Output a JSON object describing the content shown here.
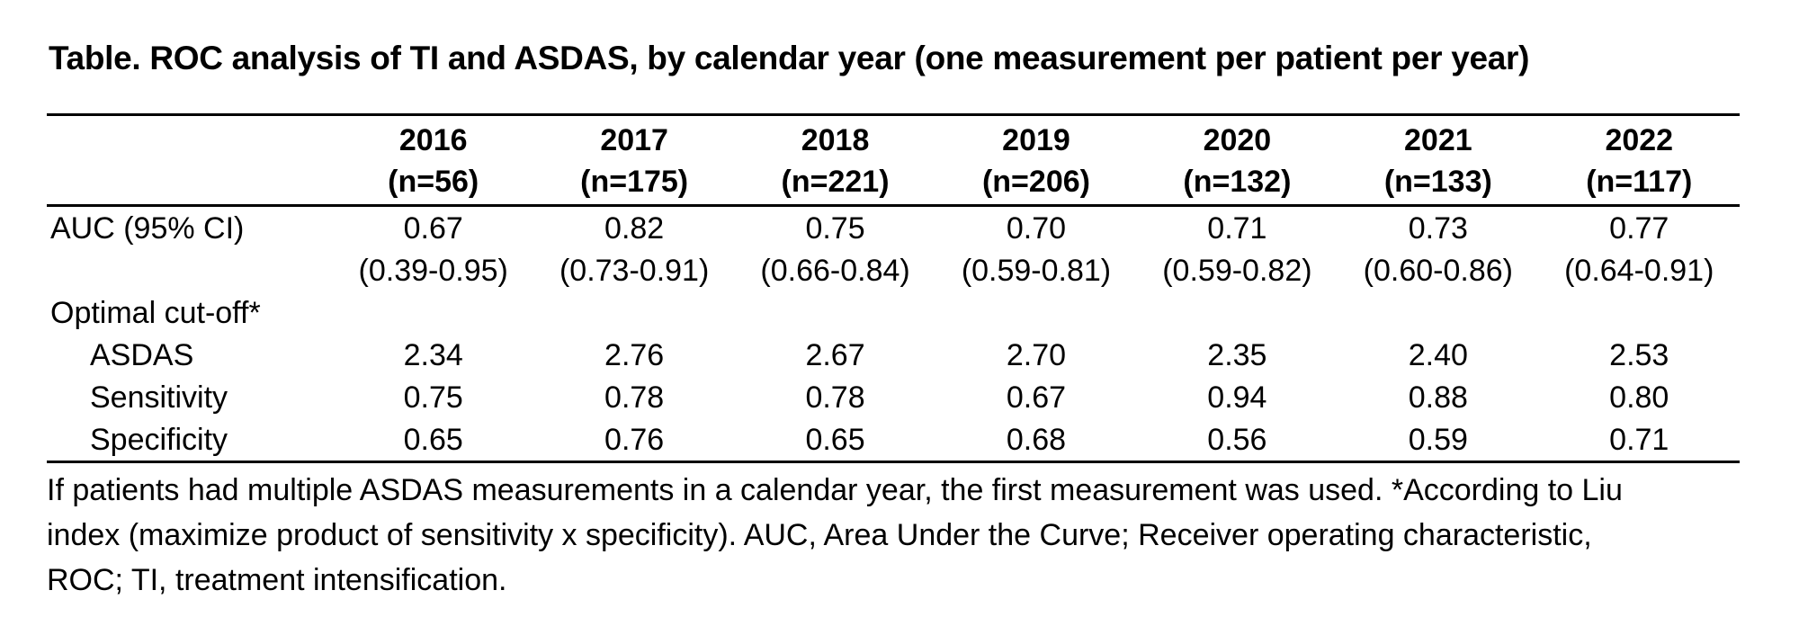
{
  "title": "Table. ROC analysis of TI and ASDAS, by calendar year (one measurement per patient per year)",
  "table": {
    "columns": [
      {
        "year": "2016",
        "n": "(n=56)"
      },
      {
        "year": "2017",
        "n": "(n=175)"
      },
      {
        "year": "2018",
        "n": "(n=221)"
      },
      {
        "year": "2019",
        "n": "(n=206)"
      },
      {
        "year": "2020",
        "n": "(n=132)"
      },
      {
        "year": "2021",
        "n": "(n=133)"
      },
      {
        "year": "2022",
        "n": "(n=117)"
      }
    ],
    "rows": [
      {
        "label": "AUC (95% CI)",
        "indent": false,
        "values": [
          "0.67",
          "0.82",
          "0.75",
          "0.70",
          "0.71",
          "0.73",
          "0.77"
        ]
      },
      {
        "label": "",
        "indent": false,
        "values": [
          "(0.39-0.95)",
          "(0.73-0.91)",
          "(0.66-0.84)",
          "(0.59-0.81)",
          "(0.59-0.82)",
          "(0.60-0.86)",
          "(0.64-0.91)"
        ]
      },
      {
        "label": "Optimal cut-off*",
        "indent": false,
        "values": [
          "",
          "",
          "",
          "",
          "",
          "",
          ""
        ]
      },
      {
        "label": "ASDAS",
        "indent": true,
        "values": [
          "2.34",
          "2.76",
          "2.67",
          "2.70",
          "2.35",
          "2.40",
          "2.53"
        ]
      },
      {
        "label": "Sensitivity",
        "indent": true,
        "values": [
          "0.75",
          "0.78",
          "0.78",
          "0.67",
          "0.94",
          "0.88",
          "0.80"
        ]
      },
      {
        "label": "Specificity",
        "indent": true,
        "values": [
          "0.65",
          "0.76",
          "0.65",
          "0.68",
          "0.56",
          "0.59",
          "0.71"
        ]
      }
    ]
  },
  "footnote_lines": [
    "If patients had multiple ASDAS measurements in a calendar year, the first measurement was used. *According to Liu",
    "index (maximize product of sensitivity x specificity). AUC, Area Under the Curve; Receiver operating characteristic,",
    "ROC; TI, treatment intensification."
  ]
}
